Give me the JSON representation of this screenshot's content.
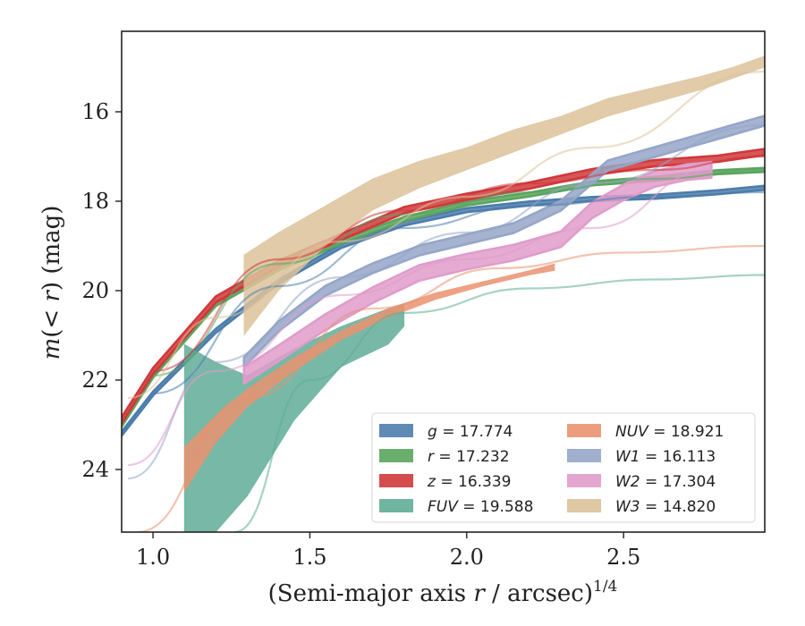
{
  "chart_data": {
    "type": "area",
    "xlabel": "(Semi-major axis r / arcsec)^1/4",
    "ylabel": "m(< r) (mag)",
    "xlim": [
      0.9,
      2.95
    ],
    "ylim": [
      25.4,
      14.2
    ],
    "y_inverted": true,
    "xticks": [
      "1.0",
      "1.5",
      "2.0",
      "2.5"
    ],
    "xtick_values": [
      1.0,
      1.5,
      2.0,
      2.5
    ],
    "yticks": [
      "16",
      "18",
      "20",
      "22",
      "24"
    ],
    "ytick_values": [
      16,
      18,
      20,
      22,
      24
    ],
    "grid": false,
    "legend_position": "lower-right",
    "series": [
      {
        "name": "g = 17.774",
        "label_math": "g",
        "value": "17.774",
        "color": "#4c7dab",
        "band": {
          "x": [
            0.9,
            1.0,
            1.2,
            1.4,
            1.6,
            1.8,
            2.0,
            2.2,
            2.4,
            2.6,
            2.8,
            2.95
          ],
          "y": [
            23.2,
            22.3,
            20.9,
            19.8,
            19.0,
            18.5,
            18.2,
            18.05,
            17.95,
            17.9,
            17.8,
            17.7
          ],
          "width": 0.09
        },
        "model": {
          "x": [
            1.0,
            1.4,
            1.8,
            2.2,
            2.6,
            2.95
          ],
          "y": [
            22.3,
            19.9,
            18.6,
            18.1,
            17.9,
            17.8
          ]
        }
      },
      {
        "name": "r = 17.232",
        "label_math": "r",
        "value": "17.232",
        "color": "#5aa55e",
        "band": {
          "x": [
            0.9,
            1.0,
            1.2,
            1.4,
            1.6,
            1.8,
            2.0,
            2.2,
            2.4,
            2.6,
            2.8,
            2.95
          ],
          "y": [
            23.0,
            21.9,
            20.3,
            19.5,
            18.9,
            18.4,
            18.05,
            17.85,
            17.6,
            17.5,
            17.35,
            17.3
          ],
          "width": 0.09
        },
        "model": {
          "x": [
            1.0,
            1.4,
            1.8,
            2.2,
            2.6,
            2.95
          ],
          "y": [
            21.9,
            19.4,
            18.3,
            17.8,
            17.5,
            17.3
          ]
        }
      },
      {
        "name": "z = 16.339",
        "label_math": "z",
        "value": "16.339",
        "color": "#d0383b",
        "band": {
          "x": [
            0.9,
            1.0,
            1.2,
            1.4,
            1.6,
            1.8,
            2.0,
            2.2,
            2.4,
            2.6,
            2.8,
            2.95
          ],
          "y": [
            22.9,
            21.8,
            20.2,
            19.4,
            18.8,
            18.2,
            17.9,
            17.65,
            17.35,
            17.15,
            17.05,
            16.9
          ],
          "width": 0.14
        },
        "model": {
          "x": [
            1.0,
            1.4,
            1.8,
            2.2,
            2.6,
            2.95
          ],
          "y": [
            21.8,
            19.3,
            18.2,
            17.6,
            17.3,
            17.0
          ]
        }
      },
      {
        "name": "FUV = 19.588",
        "label_math": "FUV",
        "value": "19.588",
        "color": "#5fad96",
        "band": {
          "x": [
            1.1,
            1.2,
            1.3,
            1.45,
            1.6,
            1.75,
            1.8
          ],
          "y_top": [
            21.2,
            21.6,
            21.9,
            21.3,
            20.8,
            20.4,
            20.3
          ],
          "y_bottom": [
            25.4,
            25.4,
            24.6,
            22.9,
            21.7,
            21.2,
            20.8
          ]
        },
        "model": {
          "x": [
            1.26,
            1.5,
            1.8,
            2.2,
            2.6,
            2.95
          ],
          "y": [
            25.4,
            22.0,
            20.5,
            19.95,
            19.75,
            19.65
          ]
        }
      },
      {
        "name": "NUV = 18.921",
        "label_math": "NUV",
        "value": "18.921",
        "color": "#ea9270",
        "band": {
          "x": [
            1.1,
            1.2,
            1.3,
            1.45,
            1.6,
            1.75,
            1.9,
            2.05,
            2.2,
            2.28
          ],
          "y_top": [
            23.5,
            22.8,
            22.2,
            21.5,
            20.9,
            20.4,
            20.05,
            19.8,
            19.55,
            19.4
          ],
          "y_bottom": [
            24.5,
            23.4,
            22.6,
            21.8,
            21.1,
            20.6,
            20.2,
            19.9,
            19.65,
            19.55
          ]
        },
        "model": {
          "x": [
            0.95,
            1.3,
            1.7,
            2.1,
            2.5,
            2.95
          ],
          "y": [
            25.4,
            22.4,
            20.4,
            19.5,
            19.15,
            19.0
          ]
        }
      },
      {
        "name": "W1 = 16.113",
        "label_math": "W1",
        "value": "16.113",
        "color": "#95a6c8",
        "band": {
          "x": [
            1.29,
            1.4,
            1.55,
            1.7,
            1.85,
            2.0,
            2.15,
            2.3,
            2.45,
            2.6,
            2.8,
            2.95
          ],
          "y": [
            21.6,
            20.8,
            20.0,
            19.5,
            19.1,
            18.85,
            18.6,
            18.1,
            17.2,
            16.9,
            16.5,
            16.2
          ],
          "width": 0.22
        },
        "model": {
          "x": [
            0.92,
            1.2,
            1.6,
            2.0,
            2.4,
            2.95
          ],
          "y": [
            24.2,
            21.6,
            19.7,
            18.7,
            17.6,
            16.3
          ]
        }
      },
      {
        "name": "W2 = 17.304",
        "label_math": "W2",
        "value": "17.304",
        "color": "#e09cca",
        "band": {
          "x": [
            1.29,
            1.4,
            1.55,
            1.7,
            1.85,
            2.0,
            2.15,
            2.3,
            2.4,
            2.5,
            2.6,
            2.7,
            2.78
          ],
          "y": [
            21.9,
            21.4,
            20.7,
            20.1,
            19.6,
            19.35,
            19.15,
            18.85,
            18.2,
            17.8,
            17.5,
            17.35,
            17.3
          ],
          "width": 0.35
        },
        "model": {
          "x": [
            0.92,
            1.2,
            1.6,
            2.0,
            2.4,
            2.78
          ],
          "y": [
            23.9,
            21.8,
            20.1,
            19.3,
            18.6,
            17.3
          ]
        }
      },
      {
        "name": "W3 = 14.820",
        "label_math": "W3",
        "value": "14.820",
        "color": "#dcc29a",
        "band": {
          "x": [
            1.29,
            1.4,
            1.55,
            1.7,
            1.85,
            2.0,
            2.15,
            2.3,
            2.45,
            2.6,
            2.75,
            2.85,
            2.95
          ],
          "y_top": [
            19.2,
            18.7,
            18.1,
            17.5,
            17.1,
            16.8,
            16.4,
            16.1,
            15.7,
            15.45,
            15.2,
            15.0,
            14.75
          ],
          "y_bottom": [
            21.0,
            20.0,
            19.0,
            18.2,
            17.7,
            17.3,
            16.9,
            16.5,
            16.1,
            15.8,
            15.5,
            15.25,
            15.0
          ]
        },
        "model": {
          "x": [
            0.92,
            1.2,
            1.6,
            2.0,
            2.4,
            2.95
          ],
          "y": [
            22.4,
            20.6,
            18.9,
            17.9,
            16.8,
            15.1
          ]
        }
      }
    ],
    "legend_columns": [
      [
        "g",
        "r",
        "z",
        "FUV"
      ],
      [
        "NUV",
        "W1",
        "W2",
        "W3"
      ]
    ]
  }
}
